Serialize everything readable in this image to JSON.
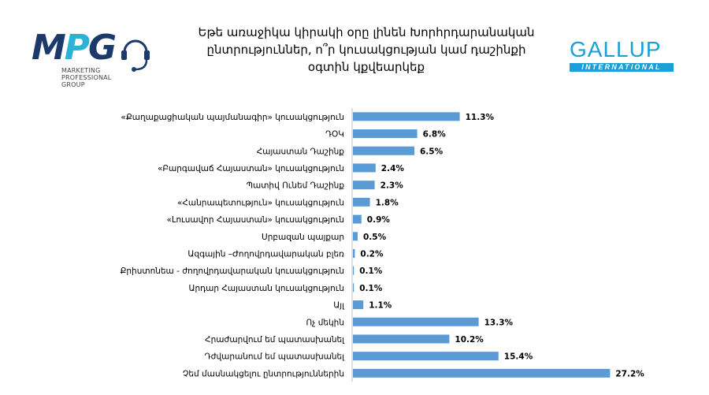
{
  "title_lines": [
    "Եթե առաջիկա կիրակի օրը լինեն Խորհրդարանական",
    "ընտրություններ, ո՞ր կուսակցության կամ դաշինքի",
    "օգտին կքվեարկեք"
  ],
  "mpg_logo": {
    "letters": "MPG",
    "subtitle_lines": [
      "MARKETING",
      "PROFESSIONAL",
      "GROUP"
    ],
    "colors": {
      "dark": "#1b3a6b",
      "light": "#2bb2d6"
    }
  },
  "gallup_logo": {
    "word": "GALLUP",
    "band": "INTERNATIONAL",
    "color": "#1aa0d6"
  },
  "chart_data": {
    "type": "bar",
    "orientation": "horizontal",
    "categories": [
      "«Քաղաքացիական պայմանագիր» կուսակցություն",
      "ԴՕԿ",
      "Հայաստան Դաշինք",
      "«Բարգավաճ Հայաստան»  կուսակցություն",
      "Պատիվ Ունեմ Դաշինք",
      "«Հանրապետություն»  կուսակցություն",
      "«Լուսավոր Հայաստան» կուսակցություն",
      "Սրբազան պայքար",
      "Ազգային –Ժողովրդավարական բլեռ",
      "Քրիստոնեա - ժողովրդավարական կուսակցություն",
      "Արդար Հայաստան կուսակցություն",
      "Այլ",
      "Ոչ մեկին",
      "Հրաժարվում եմ պատասխանել",
      "Դժվարանում եմ պատասխանել",
      "Չեմ մասնակցելու ընտրություններին"
    ],
    "values": [
      11.3,
      6.8,
      6.5,
      2.4,
      2.3,
      1.8,
      0.9,
      0.5,
      0.2,
      0.1,
      0.1,
      1.1,
      13.3,
      10.2,
      15.4,
      27.2
    ],
    "value_labels": [
      "11.3%",
      "6.8%",
      "6.5%",
      "2.4%",
      "2.3%",
      "1.8%",
      "0.9%",
      "0.5%",
      "0.2%",
      "0.1%",
      "0.1%",
      "1.1%",
      "13.3%",
      "10.2%",
      "15.4%",
      "27.2%"
    ],
    "bar_color": "#5b9bd5",
    "axis_color": "#bfbfbf",
    "grid": false,
    "legend": "none",
    "xlim": [
      0,
      30
    ]
  }
}
